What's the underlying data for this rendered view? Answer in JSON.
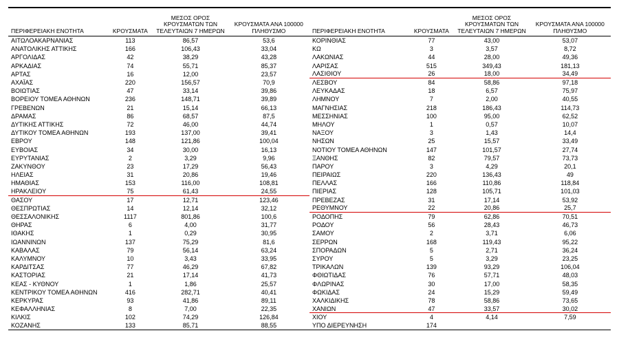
{
  "headers": {
    "region": "ΠΕΡΙΦΕΡΕΙΑΚΗ ΕΝΟΤΗΤΑ",
    "cases": "ΚΡΟΥΣΜΑΤΑ",
    "avg7": "ΜΕΣΟΣ ΟΡΟΣ ΚΡΟΥΣΜΑΤΩΝ ΤΩΝ ΤΕΛΕΥΤΑΙΩΝ 7 ΗΜΕΡΩΝ",
    "per100k": "ΚΡΟΥΣΜΑΤΑ ΑΝΑ 100000 ΠΛΗΘΥΣΜΟ"
  },
  "redColor": "#d40000",
  "left": [
    {
      "r": "ΑΙΤΩΛΟΑΚΑΡΝΑΝΙΑΣ",
      "a": "113",
      "b": "86,57",
      "c": "53,6"
    },
    {
      "r": "ΑΝΑΤΟΛΙΚΗΣ ΑΤΤΙΚΗΣ",
      "a": "166",
      "b": "106,43",
      "c": "33,04"
    },
    {
      "r": "ΑΡΓΟΛΙΔΑΣ",
      "a": "42",
      "b": "38,29",
      "c": "43,28"
    },
    {
      "r": "ΑΡΚΑΔΙΑΣ",
      "a": "74",
      "b": "55,71",
      "c": "85,37"
    },
    {
      "r": "ΑΡΤΑΣ",
      "a": "16",
      "b": "12,00",
      "c": "23,57"
    },
    {
      "r": "ΑΧΑΪΑΣ",
      "a": "220",
      "b": "156,57",
      "c": "70,9"
    },
    {
      "r": "ΒΟΙΩΤΙΑΣ",
      "a": "47",
      "b": "33,14",
      "c": "39,86"
    },
    {
      "r": "ΒΟΡΕΙΟΥ ΤΟΜΕΑ ΑΘΗΝΩΝ",
      "a": "236",
      "b": "148,71",
      "c": "39,89"
    },
    {
      "r": "ΓΡΕΒΕΝΩΝ",
      "a": "21",
      "b": "15,14",
      "c": "66,13"
    },
    {
      "r": "ΔΡΑΜΑΣ",
      "a": "86",
      "b": "68,57",
      "c": "87,5"
    },
    {
      "r": "ΔΥΤΙΚΗΣ ΑΤΤΙΚΗΣ",
      "a": "72",
      "b": "46,00",
      "c": "44,74"
    },
    {
      "r": "ΔΥΤΙΚΟΥ ΤΟΜΕΑ ΑΘΗΝΩΝ",
      "a": "193",
      "b": "137,00",
      "c": "39,41"
    },
    {
      "r": "ΕΒΡΟΥ",
      "a": "148",
      "b": "121,86",
      "c": "100,04"
    },
    {
      "r": "ΕΥΒΟΙΑΣ",
      "a": "34",
      "b": "30,00",
      "c": "16,13"
    },
    {
      "r": "ΕΥΡΥΤΑΝΙΑΣ",
      "a": "2",
      "b": "3,29",
      "c": "9,96"
    },
    {
      "r": "ΖΑΚΥΝΘΟΥ",
      "a": "23",
      "b": "17,29",
      "c": "56,43"
    },
    {
      "r": "ΗΛΕΙΑΣ",
      "a": "31",
      "b": "20,86",
      "c": "19,46"
    },
    {
      "r": "ΗΜΑΘΙΑΣ",
      "a": "153",
      "b": "116,00",
      "c": "108,81"
    },
    {
      "r": "ΗΡΑΚΛΕΙΟΥ",
      "a": "75",
      "b": "61,43",
      "c": "24,55",
      "red": true
    },
    {
      "r": "ΘΑΣΟΥ",
      "a": "17",
      "b": "12,71",
      "c": "123,46"
    },
    {
      "r": "ΘΕΣΠΡΩΤΙΑΣ",
      "a": "14",
      "b": "12,14",
      "c": "32,12"
    },
    {
      "r": "ΘΕΣΣΑΛΟΝΙΚΗΣ",
      "a": "1117",
      "b": "801,86",
      "c": "100,6"
    },
    {
      "r": "ΘΗΡΑΣ",
      "a": "6",
      "b": "4,00",
      "c": "31,77"
    },
    {
      "r": "ΙΘΑΚΗΣ",
      "a": "1",
      "b": "0,29",
      "c": "30,95"
    },
    {
      "r": "ΙΩΑΝΝΙΝΩΝ",
      "a": "137",
      "b": "75,29",
      "c": "81,6"
    },
    {
      "r": "ΚΑΒΑΛΑΣ",
      "a": "79",
      "b": "56,14",
      "c": "63,24"
    },
    {
      "r": "ΚΑΛΥΜΝΟΥ",
      "a": "10",
      "b": "3,43",
      "c": "33,95"
    },
    {
      "r": "ΚΑΡΔΙΤΣΑΣ",
      "a": "77",
      "b": "46,29",
      "c": "67,82"
    },
    {
      "r": "ΚΑΣΤΟΡΙΑΣ",
      "a": "21",
      "b": "17,14",
      "c": "41,73"
    },
    {
      "r": "ΚΕΑΣ - ΚΥΘΝΟΥ",
      "a": "1",
      "b": "1,86",
      "c": "25,57"
    },
    {
      "r": "ΚΕΝΤΡΙΚΟΥ ΤΟΜΕΑ ΑΘΗΝΩΝ",
      "a": "416",
      "b": "282,71",
      "c": "40,41"
    },
    {
      "r": "ΚΕΡΚΥΡΑΣ",
      "a": "93",
      "b": "41,86",
      "c": "89,11"
    },
    {
      "r": "ΚΕΦΑΛΛΗΝΙΑΣ",
      "a": "8",
      "b": "7,00",
      "c": "22,35"
    },
    {
      "r": "ΚΙΛΚΙΣ",
      "a": "102",
      "b": "74,29",
      "c": "126,84"
    },
    {
      "r": "ΚΟΖΑΝΗΣ",
      "a": "133",
      "b": "85,71",
      "c": "88,55",
      "bottom": true
    }
  ],
  "right": [
    {
      "r": "ΚΟΡΙΝΘΙΑΣ",
      "a": "77",
      "b": "43,00",
      "c": "53,07"
    },
    {
      "r": "ΚΩ",
      "a": "3",
      "b": "3,57",
      "c": "8,72"
    },
    {
      "r": "ΛΑΚΩΝΙΑΣ",
      "a": "44",
      "b": "28,00",
      "c": "49,36"
    },
    {
      "r": "ΛΑΡΙΣΑΣ",
      "a": "515",
      "b": "349,43",
      "c": "181,13"
    },
    {
      "r": "ΛΑΣΙΘΙΟΥ",
      "a": "26",
      "b": "18,00",
      "c": "34,49",
      "red": true
    },
    {
      "r": "ΛΕΣΒΟΥ",
      "a": "84",
      "b": "58,86",
      "c": "97,18"
    },
    {
      "r": "ΛΕΥΚΑΔΑΣ",
      "a": "18",
      "b": "6,57",
      "c": "75,97"
    },
    {
      "r": "ΛΗΜΝΟΥ",
      "a": "7",
      "b": "2,00",
      "c": "40,55"
    },
    {
      "r": "ΜΑΓΝΗΣΙΑΣ",
      "a": "218",
      "b": "186,43",
      "c": "114,73"
    },
    {
      "r": "ΜΕΣΣΗΝΙΑΣ",
      "a": "100",
      "b": "95,00",
      "c": "62,52"
    },
    {
      "r": "ΜΗΛΟΥ",
      "a": "1",
      "b": "0,57",
      "c": "10,07"
    },
    {
      "r": "ΝΑΞΟΥ",
      "a": "3",
      "b": "1,43",
      "c": "14,4"
    },
    {
      "r": "ΝΗΣΩΝ",
      "a": "25",
      "b": "15,57",
      "c": "33,49"
    },
    {
      "r": "ΝΟΤΙΟΥ ΤΟΜΕΑ ΑΘΗΝΩΝ",
      "a": "147",
      "b": "101,57",
      "c": "27,74"
    },
    {
      "r": "ΞΑΝΘΗΣ",
      "a": "82",
      "b": "79,57",
      "c": "73,73"
    },
    {
      "r": "ΠΑΡΟΥ",
      "a": "3",
      "b": "4,29",
      "c": "20,1"
    },
    {
      "r": "ΠΕΙΡΑΙΩΣ",
      "a": "220",
      "b": "136,43",
      "c": "49"
    },
    {
      "r": "ΠΕΛΛΑΣ",
      "a": "166",
      "b": "110,86",
      "c": "118,84"
    },
    {
      "r": "ΠΙΕΡΙΑΣ",
      "a": "128",
      "b": "105,71",
      "c": "101,03"
    },
    {
      "r": "ΠΡΕΒΕΖΑΣ",
      "a": "31",
      "b": "17,14",
      "c": "53,92"
    },
    {
      "r": "ΡΕΘΥΜΝΟΥ",
      "a": "22",
      "b": "20,86",
      "c": "25,7",
      "red": true
    },
    {
      "r": "ΡΟΔΟΠΗΣ",
      "a": "79",
      "b": "62,86",
      "c": "70,51"
    },
    {
      "r": "ΡΟΔΟΥ",
      "a": "56",
      "b": "28,43",
      "c": "46,73"
    },
    {
      "r": "ΣΑΜΟΥ",
      "a": "2",
      "b": "3,71",
      "c": "6,06"
    },
    {
      "r": "ΣΕΡΡΩΝ",
      "a": "168",
      "b": "119,43",
      "c": "95,22"
    },
    {
      "r": "ΣΠΟΡΑΔΩΝ",
      "a": "5",
      "b": "2,71",
      "c": "36,24"
    },
    {
      "r": "ΣΥΡΟΥ",
      "a": "5",
      "b": "3,29",
      "c": "23,25"
    },
    {
      "r": "ΤΡΙΚΑΛΩΝ",
      "a": "139",
      "b": "93,29",
      "c": "106,04"
    },
    {
      "r": "ΦΘΙΩΤΙΔΑΣ",
      "a": "76",
      "b": "57,71",
      "c": "48,03"
    },
    {
      "r": "ΦΛΩΡΙΝΑΣ",
      "a": "30",
      "b": "17,00",
      "c": "58,35"
    },
    {
      "r": "ΦΩΚΙΔΑΣ",
      "a": "24",
      "b": "15,29",
      "c": "59,49"
    },
    {
      "r": "ΧΑΛΚΙΔΙΚΗΣ",
      "a": "78",
      "b": "58,86",
      "c": "73,65"
    },
    {
      "r": "ΧΑΝΙΩΝ",
      "a": "47",
      "b": "33,57",
      "c": "30,02",
      "red": true
    },
    {
      "r": "ΧΙΟΥ",
      "a": "4",
      "b": "4,14",
      "c": "7,59"
    },
    {
      "r": "ΥΠΟ ΔΙΕΡΕΥΝΗΣΗ",
      "a": "174",
      "b": "",
      "c": "",
      "bottom": true
    }
  ]
}
